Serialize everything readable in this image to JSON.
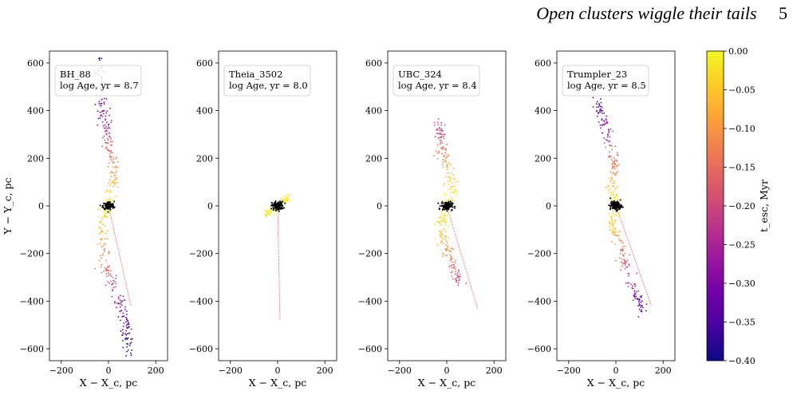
{
  "header": {
    "title": "Open clusters wiggle their tails",
    "page_number": "5"
  },
  "chart_data": [
    {
      "type": "scatter",
      "name": "BH_88",
      "label": "BH_88",
      "age_label": "log Age, yr = 8.7",
      "xlabel": "X − X_c, pc",
      "ylabel": "Y − Y_c, pc",
      "xlim": [
        -250,
        250
      ],
      "ylim": [
        -650,
        650
      ],
      "xticks": [
        -200,
        0,
        200
      ],
      "yticks": [
        -600,
        -400,
        -200,
        0,
        200,
        400,
        600
      ],
      "line": [
        [
          0,
          0
        ],
        [
          95,
          -420
        ]
      ],
      "tail_leading": [
        [
          0,
          0,
          0.0
        ],
        [
          8,
          60,
          -0.04
        ],
        [
          18,
          110,
          -0.08
        ],
        [
          25,
          160,
          -0.11
        ],
        [
          10,
          210,
          -0.14
        ],
        [
          -5,
          260,
          -0.18
        ],
        [
          -8,
          320,
          -0.22
        ],
        [
          -18,
          380,
          -0.28
        ],
        [
          -30,
          440,
          -0.33
        ],
        [
          -30,
          520,
          -0.37
        ],
        [
          -40,
          620,
          -0.4
        ]
      ],
      "tail_trailing": [
        [
          0,
          0,
          0.0
        ],
        [
          -25,
          -60,
          -0.04
        ],
        [
          -20,
          -130,
          -0.08
        ],
        [
          -15,
          -200,
          -0.12
        ],
        [
          -5,
          -270,
          -0.17
        ],
        [
          20,
          -330,
          -0.22
        ],
        [
          50,
          -400,
          -0.28
        ],
        [
          70,
          -470,
          -0.33
        ],
        [
          80,
          -540,
          -0.37
        ],
        [
          85,
          -620,
          -0.4
        ]
      ],
      "tail_width": 20,
      "tail_points": 190,
      "core_sx": 12,
      "core_sy": 9
    },
    {
      "type": "scatter",
      "name": "Theia_3502",
      "label": "Theia_3502",
      "age_label": "log Age, yr = 8.0",
      "xlabel": "X − X_c, pc",
      "ylabel": "",
      "xlim": [
        -250,
        250
      ],
      "ylim": [
        -650,
        650
      ],
      "xticks": [
        -200,
        0,
        200
      ],
      "yticks": [
        -600,
        -400,
        -200,
        0,
        200,
        400,
        600
      ],
      "line": [
        [
          0,
          0
        ],
        [
          10,
          -480
        ]
      ],
      "tail_leading": [
        [
          0,
          0,
          0.0
        ],
        [
          25,
          20,
          -0.01
        ],
        [
          50,
          40,
          -0.02
        ]
      ],
      "tail_trailing": [
        [
          0,
          0,
          0.0
        ],
        [
          -25,
          -20,
          -0.01
        ],
        [
          -50,
          -35,
          -0.02
        ]
      ],
      "tail_width": 9,
      "tail_points": 50,
      "core_sx": 12,
      "core_sy": 9
    },
    {
      "type": "scatter",
      "name": "UBC_324",
      "label": "UBC_324",
      "age_label": "log Age, yr = 8.4",
      "xlabel": "X − X_c, pc",
      "ylabel": "",
      "xlim": [
        -250,
        250
      ],
      "ylim": [
        -650,
        650
      ],
      "xticks": [
        -200,
        0,
        200
      ],
      "yticks": [
        -600,
        -400,
        -200,
        0,
        200,
        400,
        600
      ],
      "line": [
        [
          0,
          0
        ],
        [
          130,
          -430
        ]
      ],
      "tail_leading": [
        [
          0,
          0,
          0.0
        ],
        [
          25,
          60,
          -0.02
        ],
        [
          15,
          120,
          -0.06
        ],
        [
          -5,
          180,
          -0.1
        ],
        [
          -20,
          240,
          -0.14
        ],
        [
          -25,
          300,
          -0.18
        ],
        [
          -35,
          330,
          -0.21
        ]
      ],
      "tail_trailing": [
        [
          0,
          0,
          0.0
        ],
        [
          -20,
          -60,
          -0.02
        ],
        [
          -25,
          -120,
          -0.06
        ],
        [
          -5,
          -180,
          -0.1
        ],
        [
          20,
          -230,
          -0.14
        ],
        [
          40,
          -280,
          -0.18
        ],
        [
          55,
          -320,
          -0.21
        ]
      ],
      "tail_width": 20,
      "tail_points": 140,
      "core_sx": 12,
      "core_sy": 9
    },
    {
      "type": "scatter",
      "name": "Trumpler_23",
      "label": "Trumpler_23",
      "age_label": "log Age, yr = 8.5",
      "xlabel": "X − X_c, pc",
      "ylabel": "",
      "xlim": [
        -250,
        250
      ],
      "ylim": [
        -650,
        650
      ],
      "xticks": [
        -200,
        0,
        200
      ],
      "yticks": [
        -600,
        -400,
        -200,
        0,
        200,
        400,
        600
      ],
      "line": [
        [
          0,
          0
        ],
        [
          150,
          -420
        ]
      ],
      "tail_leading": [
        [
          0,
          0,
          0.0
        ],
        [
          -20,
          50,
          -0.03
        ],
        [
          -15,
          100,
          -0.07
        ],
        [
          0,
          160,
          -0.12
        ],
        [
          -15,
          220,
          -0.17
        ],
        [
          -30,
          280,
          -0.22
        ],
        [
          -50,
          340,
          -0.28
        ],
        [
          -70,
          400,
          -0.32
        ],
        [
          -70,
          440,
          -0.35
        ]
      ],
      "tail_trailing": [
        [
          0,
          0,
          0.0
        ],
        [
          -15,
          -50,
          -0.03
        ],
        [
          -5,
          -110,
          -0.07
        ],
        [
          20,
          -170,
          -0.12
        ],
        [
          35,
          -230,
          -0.17
        ],
        [
          55,
          -290,
          -0.22
        ],
        [
          75,
          -350,
          -0.28
        ],
        [
          95,
          -400,
          -0.32
        ],
        [
          115,
          -430,
          -0.35
        ]
      ],
      "tail_width": 18,
      "tail_points": 160,
      "core_sx": 12,
      "core_sy": 9
    }
  ],
  "colorbar": {
    "label": "t_esc, Myr",
    "min": -0.4,
    "max": 0.0,
    "ticks": [
      "0.00",
      "−0.05",
      "−0.10",
      "−0.15",
      "−0.20",
      "−0.25",
      "−0.30",
      "−0.35",
      "−0.40"
    ],
    "colormap": "plasma",
    "stops": [
      "#0d0887",
      "#46039f",
      "#7201a8",
      "#9c179e",
      "#bd3786",
      "#d8576b",
      "#ed7953",
      "#fb9f3a",
      "#fdca26",
      "#f0f921"
    ]
  },
  "core_color": "#000000",
  "line_color": "#e05a5a"
}
